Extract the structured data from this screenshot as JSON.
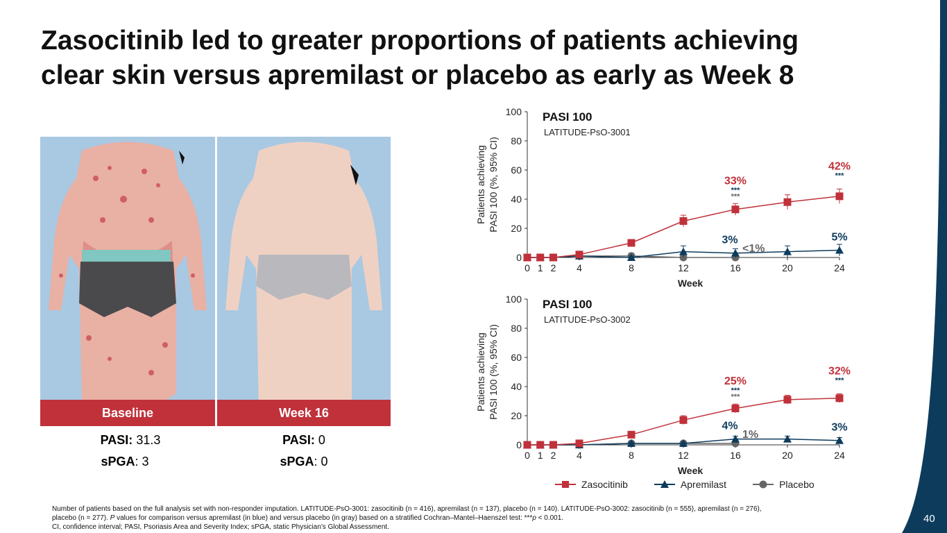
{
  "title": "Zasocitinib led to greater proportions of patients achieving clear skin versus apremilast or placebo as early as Week 8",
  "photos": [
    {
      "label": "Baseline",
      "pasi_label": "PASI:",
      "pasi_value": "31.3",
      "spga_label": "sPGA",
      "spga_value": ": 3"
    },
    {
      "label": "Week 16",
      "pasi_label": "PASI:",
      "pasi_value": "0",
      "spga_label": "sPGA",
      "spga_value": ": 0"
    }
  ],
  "legend": [
    {
      "name": "Zasocitinib",
      "color": "#c0313a",
      "marker": "square"
    },
    {
      "name": "Apremilast",
      "color": "#0d3b5c",
      "marker": "triangle"
    },
    {
      "name": "Placebo",
      "color": "#666666",
      "marker": "circle"
    }
  ],
  "chart_data": [
    {
      "type": "line",
      "title": "PASI 100",
      "subtitle": "LATITUDE-PsO-3001",
      "xlabel": "Week",
      "ylabel": "Patients achieving PASI 100 (%, 95% CI)",
      "ylim": [
        0,
        100
      ],
      "yticks": [
        0,
        20,
        40,
        60,
        80,
        100
      ],
      "xticks": [
        0,
        1,
        2,
        4,
        8,
        12,
        16,
        20,
        24
      ],
      "series": [
        {
          "name": "Zasocitinib",
          "x": [
            0,
            1,
            2,
            4,
            8,
            12,
            16,
            20,
            24
          ],
          "y": [
            0,
            0,
            0,
            2,
            10,
            25,
            33,
            38,
            42
          ],
          "err": [
            0,
            0,
            0,
            1,
            2,
            4,
            4,
            5,
            5
          ]
        },
        {
          "name": "Apremilast",
          "x": [
            0,
            1,
            2,
            4,
            8,
            12,
            16,
            20,
            24
          ],
          "y": [
            0,
            0,
            0,
            1,
            0,
            4,
            3,
            4,
            5
          ],
          "err": [
            0,
            0,
            0,
            1,
            1,
            4,
            3,
            4,
            4
          ]
        },
        {
          "name": "Placebo",
          "x": [
            0,
            1,
            2,
            4,
            8,
            12,
            16
          ],
          "y": [
            0,
            0,
            0,
            1,
            1,
            0,
            0
          ],
          "err": [
            0,
            0,
            0,
            2,
            2,
            1,
            1
          ]
        }
      ],
      "annotations": [
        {
          "text": "33%",
          "series": "Zasocitinib",
          "x": 16
        },
        {
          "text": "42%",
          "series": "Zasocitinib",
          "x": 24
        },
        {
          "text": "3%",
          "series": "Apremilast",
          "x": 16
        },
        {
          "text": "5%",
          "series": "Apremilast",
          "x": 24
        },
        {
          "text": "<1%",
          "series": "Placebo",
          "x": 16
        }
      ],
      "significance": "***"
    },
    {
      "type": "line",
      "title": "PASI 100",
      "subtitle": "LATITUDE-PsO-3002",
      "xlabel": "Week",
      "ylabel": "Patients achieving PASI 100 (%, 95% CI)",
      "ylim": [
        0,
        100
      ],
      "yticks": [
        0,
        20,
        40,
        60,
        80,
        100
      ],
      "xticks": [
        0,
        1,
        2,
        4,
        8,
        12,
        16,
        20,
        24
      ],
      "series": [
        {
          "name": "Zasocitinib",
          "x": [
            0,
            1,
            2,
            4,
            8,
            12,
            16,
            20,
            24
          ],
          "y": [
            0,
            0,
            0,
            1,
            7,
            17,
            25,
            31,
            32
          ],
          "err": [
            0,
            0,
            0,
            1,
            1,
            3,
            3,
            3,
            3
          ]
        },
        {
          "name": "Apremilast",
          "x": [
            0,
            1,
            2,
            4,
            8,
            12,
            16,
            20,
            24
          ],
          "y": [
            0,
            0,
            0,
            0,
            1,
            1,
            4,
            4,
            3
          ],
          "err": [
            0,
            0,
            0,
            0,
            1,
            1,
            2,
            2,
            2
          ]
        },
        {
          "name": "Placebo",
          "x": [
            0,
            1,
            2,
            4,
            8,
            12,
            16
          ],
          "y": [
            0,
            0,
            0,
            0,
            1,
            1,
            1
          ],
          "err": [
            0,
            0,
            0,
            0,
            1,
            1,
            1
          ]
        }
      ],
      "annotations": [
        {
          "text": "25%",
          "series": "Zasocitinib",
          "x": 16
        },
        {
          "text": "32%",
          "series": "Zasocitinib",
          "x": 24
        },
        {
          "text": "4%",
          "series": "Apremilast",
          "x": 16
        },
        {
          "text": "3%",
          "series": "Apremilast",
          "x": 24
        },
        {
          "text": "1%",
          "series": "Placebo",
          "x": 16
        }
      ],
      "significance": "***"
    }
  ],
  "footnote": {
    "line1": "Number of patients based on the full analysis set with non-responder imputation. LATITUDE-PsO-3001: zasocitinib (n = 416), apremilast (n = 137), placebo (n = 140). LATITUDE-PsO-3002: zasocitinib (n = 555), apremilast (n = 276),",
    "line2_pre": "placebo (n = 277). ",
    "line2_p": "P",
    "line2_mid": " values for comparison versus apremilast (in blue) and versus placebo (in gray) based on a stratified Cochran–Mantel–Haenszel test: ***",
    "line2_p2": "p",
    "line2_post": " < 0.001.",
    "line3": "CI, confidence interval; PASI, Psoriasis Area and Severity Index; sPGA, static Physician’s Global Assessment."
  },
  "page_number": "40",
  "colors": {
    "accent": "#c0313a",
    "navy": "#0d3b5c",
    "gray": "#666666",
    "photo_bg": "#a9c8e2"
  }
}
